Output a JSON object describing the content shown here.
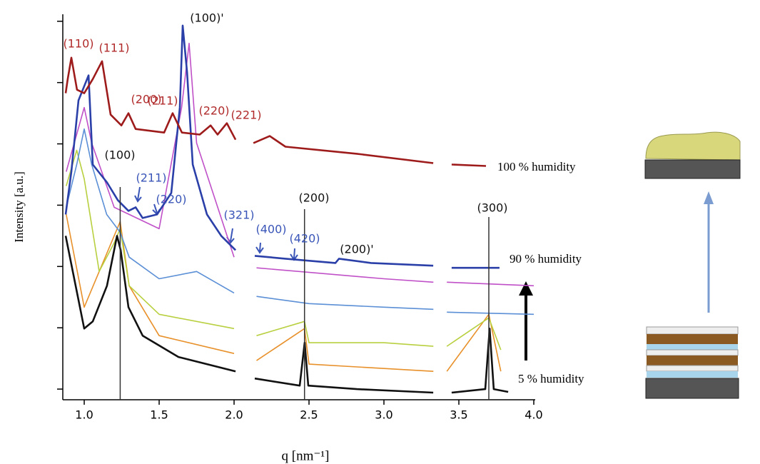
{
  "chart_data": {
    "type": "line",
    "y_label": "Intensity [a.u.]",
    "x_label": "q [nm⁻¹]",
    "xlim": [
      0.857,
      4.0
    ],
    "xticks": [
      {
        "value": 1,
        "label": "1.0"
      },
      1.5,
      {
        "value": 2,
        "label": "2.0"
      },
      2.5,
      {
        "value": 3,
        "label": "3.0"
      },
      3.5,
      {
        "value": 4,
        "label": "4.0"
      }
    ],
    "ylim": [
      0.67,
      1300000
    ],
    "yticks": [
      1,
      10,
      100,
      1000,
      10000,
      100000,
      1000000
    ],
    "log_y": true,
    "reference_lines": [
      1.24,
      2.47,
      3.7
    ],
    "series": [
      {
        "color": "#e8902a",
        "x": [
          0.88,
          1.0,
          1.24,
          1.3,
          1.5,
          2.0,
          2.08,
          2.15,
          2.47,
          2.5,
          3.33,
          3.39,
          3.42,
          3.7,
          3.78
        ],
        "values": [
          706,
          21.7,
          540,
          48.5,
          7.45,
          3.81,
          null,
          2.92,
          9.7,
          2.55,
          1.95,
          null,
          1.95,
          16.6,
          1.95
        ]
      },
      {
        "color": "#b8d040",
        "x": [
          0.88,
          0.95,
          1.0,
          1.1,
          1.2,
          1.24,
          1.3,
          1.5,
          2.0,
          2.08,
          2.15,
          2.47,
          2.5,
          3.0,
          3.33,
          3.39,
          3.42,
          3.7,
          3.78
        ],
        "values": [
          2060,
          7860,
          2690,
          83,
          242,
          413,
          48.5,
          16.6,
          9.7,
          null,
          7.45,
          12.7,
          5.7,
          5.7,
          4.99,
          null,
          4.99,
          14.5,
          4.36
        ]
      },
      {
        "color": "#5b8fd6",
        "x": [
          0.88,
          0.95,
          1.0,
          1.05,
          1.15,
          1.24,
          1.3,
          1.5,
          1.75,
          2.0,
          2.08,
          2.15,
          2.5,
          3.0,
          3.33,
          3.39,
          3.42,
          4.0
        ],
        "values": [
          923,
          4600,
          17500,
          4600,
          706,
          361,
          142,
          63,
          83,
          37,
          null,
          32.5,
          24.8,
          21.7,
          20,
          null,
          18,
          16.6
        ]
      },
      {
        "color": "#c050c8",
        "x": [
          0.88,
          1.0,
          1.05,
          1.2,
          1.5,
          1.65,
          1.7,
          1.75,
          2.0,
          2.08,
          2.15,
          3.0,
          3.33,
          3.39,
          3.42,
          4.0
        ],
        "values": [
          3520,
          39200,
          10300,
          923,
          413,
          39200,
          436000,
          10300,
          142,
          null,
          95,
          63,
          55.5,
          null,
          55.5,
          48.5
        ]
      },
      {
        "name": "5 % humidity",
        "color": "#111111",
        "x": [
          0.876,
          1.0,
          1.057,
          1.152,
          1.219,
          1.243,
          1.295,
          1.39,
          1.629,
          2.01,
          2.08,
          2.138,
          2.438,
          2.471,
          2.495,
          2.819,
          3.329,
          3.39,
          3.452,
          3.676,
          3.705,
          3.733,
          3.829
        ],
        "values": [
          316,
          9.7,
          12.7,
          48.5,
          316,
          185,
          21.7,
          7.45,
          3.34,
          1.95,
          null,
          1.49,
          1.14,
          5.7,
          1.14,
          1.0,
          0.875,
          null,
          0.875,
          1.0,
          9.7,
          1.0,
          0.9
        ]
      },
      {
        "name": "90 % humidity",
        "color": "#2a3fa8",
        "x": [
          0.876,
          0.914,
          0.962,
          1.029,
          1.057,
          1.152,
          1.224,
          1.295,
          1.343,
          1.39,
          1.486,
          1.581,
          1.638,
          1.657,
          1.686,
          1.724,
          1.819,
          1.914,
          2.01,
          2.08,
          2.138,
          2.343,
          2.676,
          2.7,
          2.914,
          3.329,
          3.39,
          3.452,
          3.771
        ],
        "values": [
          706,
          3520,
          51200,
          131000,
          4600,
          2355,
          1206,
          807,
          923,
          618,
          706,
          1577,
          39200,
          850000,
          149000,
          4600,
          706,
          316,
          185,
          null,
          149,
          134,
          114,
          134,
          114,
          103,
          null,
          95,
          95
        ]
      },
      {
        "name": "100 % humidity",
        "color": "#9e1b1b",
        "x": [
          0.876,
          0.89,
          0.914,
          0.952,
          1.0,
          1.057,
          1.119,
          1.176,
          1.248,
          1.295,
          1.343,
          1.533,
          1.59,
          1.652,
          1.771,
          1.843,
          1.89,
          1.952,
          2.01,
          2.08,
          2.129,
          2.238,
          2.343,
          2.819,
          3.329,
          3.39,
          3.452,
          3.681
        ],
        "values": [
          67000,
          114000,
          255000,
          76500,
          67000,
          114000,
          223000,
          30000,
          20000,
          31600,
          17500,
          15300,
          31600,
          15300,
          14200,
          20000,
          14200,
          21700,
          11700,
          null,
          10300,
          13400,
          9000,
          6900,
          4850,
          null,
          4600,
          4360
        ]
      }
    ],
    "annotations": [
      {
        "text": "(110)",
        "color": "#b02a2a"
      },
      {
        "text": "(111)",
        "color": "#b02a2a"
      },
      {
        "text": "(200)",
        "color": "#b02a2a"
      },
      {
        "text": "(211)",
        "color": "#b02a2a"
      },
      {
        "text": "(220)",
        "color": "#b02a2a"
      },
      {
        "text": "(221)",
        "color": "#b02a2a"
      },
      {
        "text": "(100)'",
        "color": "#111111"
      },
      {
        "text": "(100)",
        "color": "#111111"
      },
      {
        "text": "(200)",
        "color": "#111111"
      },
      {
        "text": "(300)",
        "color": "#111111"
      },
      {
        "text": "(200)'",
        "color": "#111111"
      },
      {
        "text": "(211)",
        "color": "#3a55b8"
      },
      {
        "text": "(220)",
        "color": "#3a55b8"
      },
      {
        "text": "(321)",
        "color": "#3a55b8"
      },
      {
        "text": "(400)",
        "color": "#3a55b8"
      },
      {
        "text": "(420)",
        "color": "#3a55b8"
      }
    ]
  }
}
